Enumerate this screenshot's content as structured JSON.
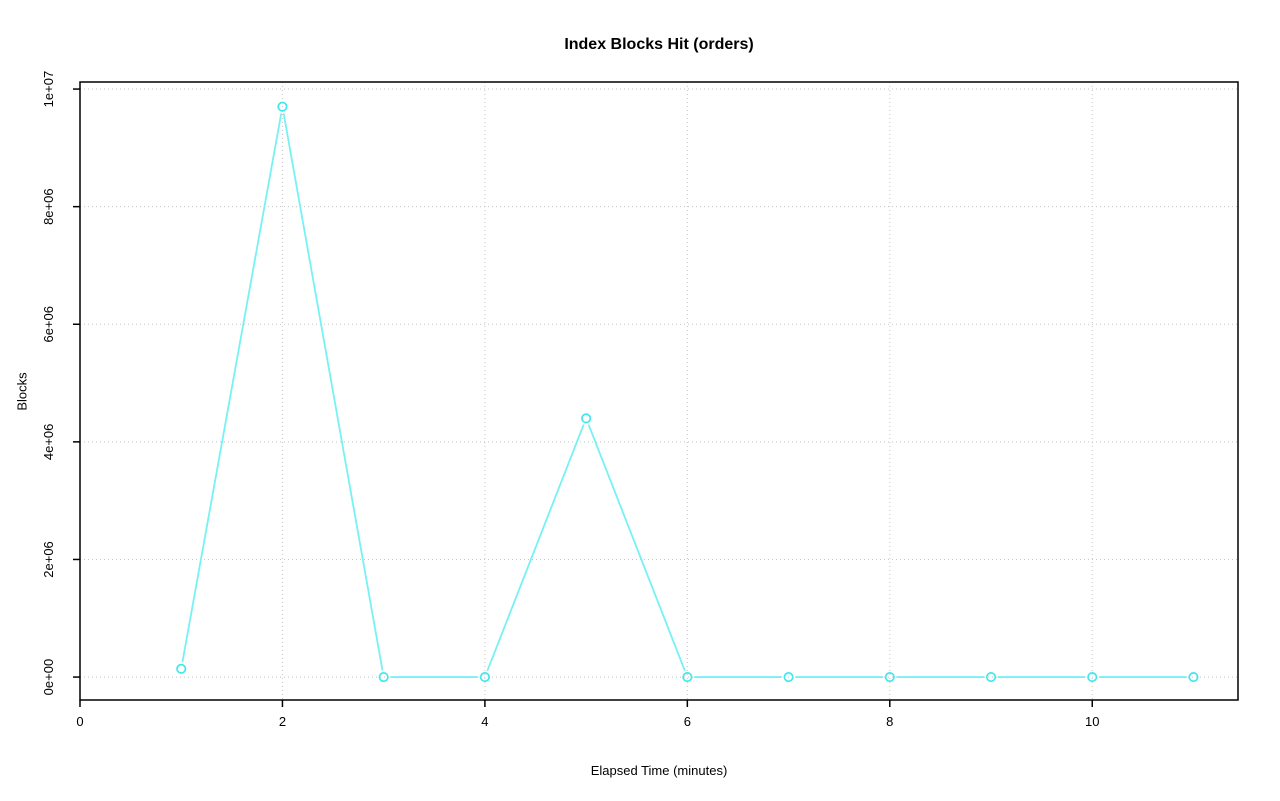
{
  "page": {
    "background": "#ffffff"
  },
  "chart_data": {
    "type": "line",
    "title": "Index Blocks Hit (orders)",
    "xlabel": "Elapsed Time (minutes)",
    "ylabel": "Blocks",
    "x": [
      1,
      2,
      3,
      4,
      5,
      6,
      7,
      8,
      9,
      10,
      11
    ],
    "series": [
      {
        "name": "Index Blocks Hit",
        "values": [
          140000,
          9700000,
          0,
          0,
          4400000,
          0,
          0,
          0,
          0,
          0,
          0
        ]
      }
    ],
    "xlim": [
      0,
      11.44
    ],
    "ylim": [
      -390000,
      10120000
    ],
    "x_ticks": [
      0,
      2,
      4,
      6,
      8,
      10
    ],
    "x_tick_labels": [
      "0",
      "2",
      "4",
      "6",
      "8",
      "10"
    ],
    "y_ticks": [
      0,
      2000000,
      4000000,
      6000000,
      8000000,
      10000000
    ],
    "y_tick_labels": [
      "0e+00",
      "2e+06",
      "4e+06",
      "6e+06",
      "8e+06",
      "1e+07"
    ],
    "grid": true,
    "grid_style": "dotted",
    "legend": "none",
    "marker": "open-circle",
    "line_style": "segments-with-point-gaps",
    "colors": {
      "line": "#76F1F4",
      "marker": "#41E8EC",
      "grid": "#C4C4C4",
      "axis": "#000000",
      "text": "#000000"
    }
  }
}
